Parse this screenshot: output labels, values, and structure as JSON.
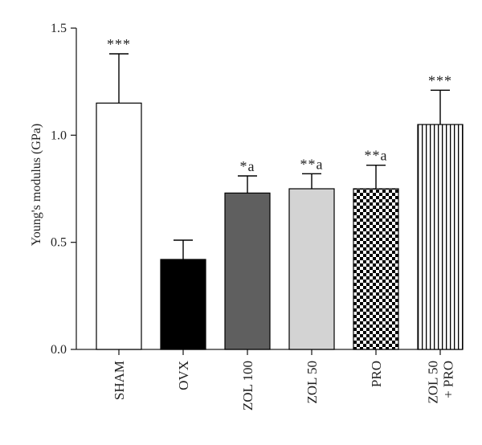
{
  "chart_data": {
    "type": "bar",
    "ylabel": "Young's modulus (GPa)",
    "ylim": [
      0,
      1.5
    ],
    "yticks": [
      "0.0",
      "0.5",
      "1.0",
      "1.5"
    ],
    "grid": false,
    "categories": [
      {
        "lines": [
          "SHAM"
        ]
      },
      {
        "lines": [
          "OVX"
        ]
      },
      {
        "lines": [
          "ZOL 100"
        ]
      },
      {
        "lines": [
          "ZOL 50"
        ]
      },
      {
        "lines": [
          "PRO"
        ]
      },
      {
        "lines": [
          "ZOL 50",
          "+ PRO"
        ]
      }
    ],
    "values": [
      1.15,
      0.42,
      0.73,
      0.75,
      0.75,
      1.05
    ],
    "errors": [
      0.23,
      0.09,
      0.08,
      0.07,
      0.11,
      0.16
    ],
    "annotations": [
      "***",
      "",
      "*a",
      "**a",
      "**a",
      "***"
    ],
    "fills": [
      "white",
      "black",
      "dark-gray",
      "light-gray",
      "checker",
      "vertical-stripes"
    ]
  }
}
